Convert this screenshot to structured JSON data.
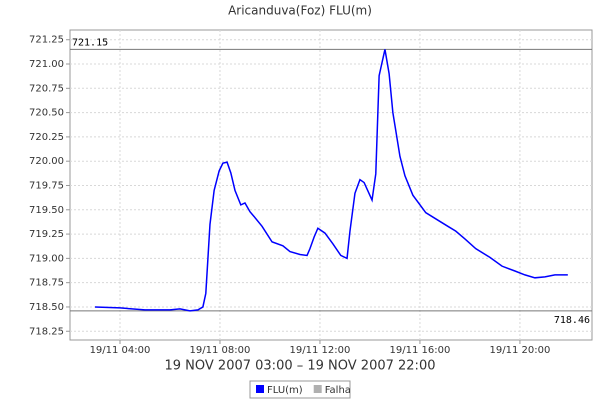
{
  "chart_data": {
    "type": "line",
    "title": "Aricanduva(Foz) FLU(m)",
    "x_label": "19 NOV 2007 03:00 – 19 NOV 2007 22:00",
    "x": [
      "19/11 03:00",
      "19/11 04:00",
      "19/11 05:00",
      "19/11 06:00",
      "19/11 06:24",
      "19/11 06:48",
      "19/11 07:07",
      "19/11 07:19",
      "19/11 07:26",
      "19/11 07:36",
      "19/11 07:46",
      "19/11 07:58",
      "19/11 08:07",
      "19/11 08:17",
      "19/11 08:26",
      "19/11 08:36",
      "19/11 08:50",
      "19/11 09:00",
      "19/11 09:12",
      "19/11 09:22",
      "19/11 09:41",
      "19/11 10:05",
      "19/11 10:31",
      "19/11 10:48",
      "19/11 11:12",
      "19/11 11:29",
      "19/11 11:36",
      "19/11 11:46",
      "19/11 11:55",
      "19/11 12:12",
      "19/11 12:31",
      "19/11 12:50",
      "19/11 13:05",
      "19/11 13:12",
      "19/11 13:24",
      "19/11 13:36",
      "19/11 13:46",
      "19/11 14:05",
      "19/11 14:14",
      "19/11 14:22",
      "19/11 14:36",
      "19/11 14:46",
      "19/11 14:55",
      "19/11 15:12",
      "19/11 15:24",
      "19/11 15:43",
      "19/11 16:14",
      "19/11 16:48",
      "19/11 17:07",
      "19/11 17:26",
      "19/11 17:48",
      "19/11 18:14",
      "19/11 18:48",
      "19/11 19:17",
      "19/11 19:48",
      "19/11 20:12",
      "19/11 20:36",
      "19/11 21:00",
      "19/11 21:24",
      "19/11 21:55"
    ],
    "series": [
      {
        "name": "FLU(m)",
        "color": "#0000ff",
        "values": [
          718.5,
          718.49,
          718.47,
          718.47,
          718.48,
          718.46,
          718.47,
          718.5,
          718.64,
          719.35,
          719.7,
          719.9,
          719.98,
          719.99,
          719.88,
          719.7,
          719.55,
          719.57,
          719.48,
          719.43,
          719.33,
          719.17,
          719.13,
          719.07,
          719.04,
          719.03,
          719.1,
          719.22,
          719.31,
          719.26,
          719.15,
          719.03,
          719.0,
          719.28,
          719.67,
          719.81,
          719.78,
          719.6,
          719.87,
          720.88,
          721.15,
          720.9,
          720.5,
          720.05,
          719.85,
          719.65,
          719.47,
          719.38,
          719.33,
          719.28,
          719.2,
          719.1,
          719.01,
          718.92,
          718.87,
          718.83,
          718.8,
          718.81,
          718.83,
          718.83
        ]
      },
      {
        "name": "Falha",
        "color": "#b0b0b0",
        "values": [
          null,
          null,
          null,
          null,
          null,
          null,
          null,
          null,
          null,
          null,
          null,
          null,
          null,
          null,
          null,
          null,
          null,
          null,
          null,
          null,
          null,
          null,
          null,
          null,
          null,
          null,
          null,
          null,
          null,
          null,
          null,
          null,
          null,
          null,
          null,
          null,
          null,
          null,
          null,
          null,
          null,
          null,
          null,
          null,
          null,
          null,
          null,
          null,
          null,
          null,
          null,
          null,
          null,
          null,
          null,
          null,
          null,
          null,
          null,
          null
        ]
      }
    ],
    "xlim": [
      "19/11 02:00",
      "19/11 22:53"
    ],
    "xticks": [
      "19/11 04:00",
      "19/11 08:00",
      "19/11 12:00",
      "19/11 16:00",
      "19/11 20:00"
    ],
    "ylim": [
      718.16,
      721.35
    ],
    "yticks": [
      718.25,
      {
        "value": 718.5,
        "label": "718.50"
      },
      718.75,
      {
        "value": 719,
        "label": "719.00"
      },
      719.25,
      {
        "value": 719.5,
        "label": "719.50"
      },
      719.75,
      {
        "value": 720,
        "label": "720.00"
      },
      720.25,
      {
        "value": 720.5,
        "label": "720.50"
      },
      720.75,
      {
        "value": 721,
        "label": "721.00"
      },
      721.25
    ],
    "ref_lines": [
      721.15,
      718.46
    ],
    "grid": true
  }
}
